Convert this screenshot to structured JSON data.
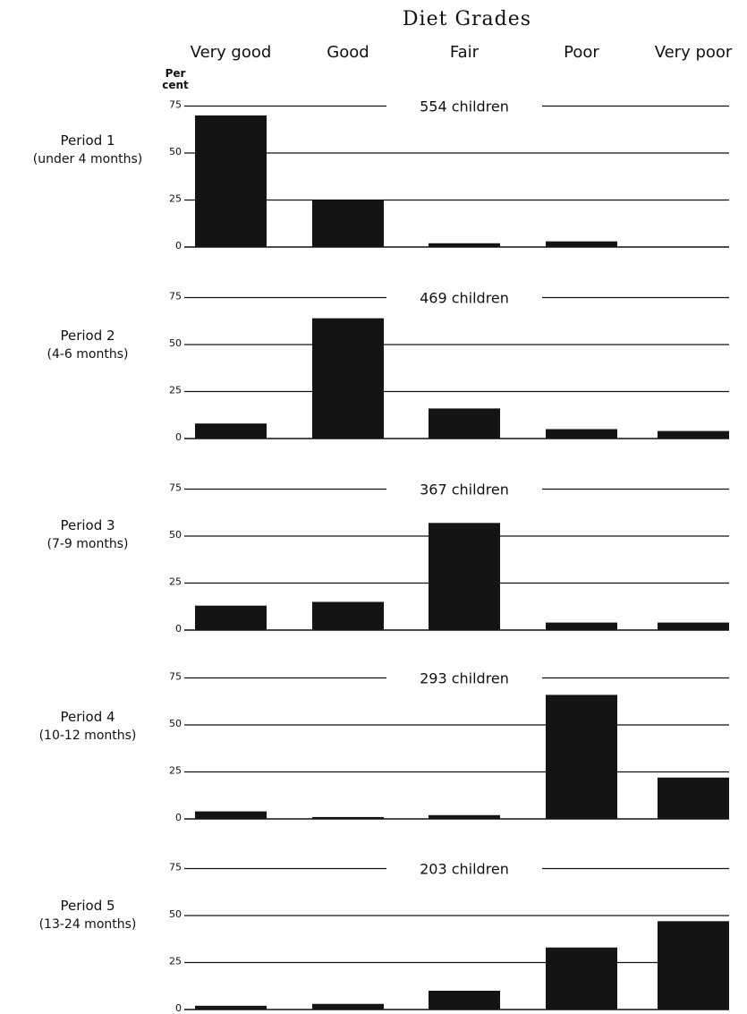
{
  "header": {
    "title": "Diet Grades",
    "unit_line1": "Per",
    "unit_line2": "cent"
  },
  "colors": {
    "bar": "#141414",
    "line": "#111111"
  },
  "chart_data": {
    "type": "bar",
    "title": "Diet Grades",
    "categories": [
      "Very good",
      "Good",
      "Fair",
      "Poor",
      "Very poor"
    ],
    "ylabel": "Per cent",
    "ylim": [
      0,
      75
    ],
    "yticks": [
      "0",
      "25",
      "50",
      "75"
    ],
    "legend": "none",
    "panels": [
      {
        "period": "Period 1",
        "age": "(under 4 months)",
        "count_label": "554 children",
        "values": [
          70,
          25,
          2,
          3,
          0
        ]
      },
      {
        "period": "Period 2",
        "age": "(4-6 months)",
        "count_label": "469 children",
        "values": [
          8,
          64,
          16,
          5,
          4
        ]
      },
      {
        "period": "Period 3",
        "age": "(7-9 months)",
        "count_label": "367 children",
        "values": [
          13,
          15,
          57,
          4,
          4
        ]
      },
      {
        "period": "Period 4",
        "age": "(10-12 months)",
        "count_label": "293 children",
        "values": [
          4,
          1,
          2,
          66,
          22
        ]
      },
      {
        "period": "Period 5",
        "age": "(13-24 months)",
        "count_label": "203 children",
        "values": [
          2,
          3,
          10,
          33,
          47
        ]
      }
    ]
  }
}
